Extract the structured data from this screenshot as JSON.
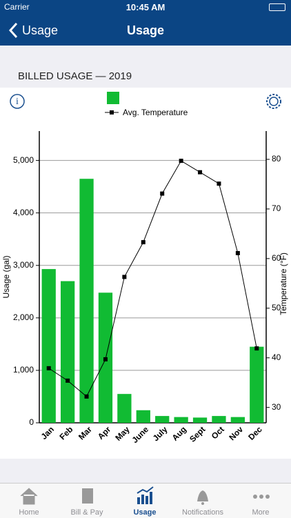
{
  "status": {
    "carrier": "Carrier",
    "time": "10:45 AM"
  },
  "nav": {
    "back": "Usage",
    "title": "Usage"
  },
  "section_title": "BILLED USAGE — 2019",
  "chart_data": {
    "type": "bar",
    "ylabel": "Usage (gal)",
    "y2label": "Temperature (°F)",
    "categories": [
      "Jan",
      "Feb",
      "Mar",
      "Apr",
      "May",
      "June",
      "July",
      "Aug",
      "Sept",
      "Oct",
      "Nov",
      "Dec"
    ],
    "series": [
      {
        "color": "#11bb33",
        "values": [
          2930,
          2700,
          4650,
          2480,
          550,
          240,
          130,
          110,
          100,
          130,
          110,
          1450
        ]
      },
      {
        "name": "Avg. Temperature",
        "type": "line",
        "axis": "y2",
        "color": "#000000",
        "values": [
          37.9,
          35.4,
          32.2,
          39.7,
          56.3,
          63.3,
          73.1,
          79.7,
          77.4,
          75.1,
          61.1,
          41.9
        ]
      }
    ],
    "ylim": [
      0,
      5560
    ],
    "yticks": [
      0,
      {
        "value": 1000,
        "label": "1,000"
      },
      {
        "value": 2000,
        "label": "2,000"
      },
      {
        "value": 3000,
        "label": "3,000"
      },
      {
        "value": 4000,
        "label": "4,000"
      },
      {
        "value": 5000,
        "label": "5,000"
      }
    ],
    "y2lim": [
      26.9,
      85.7
    ],
    "y2ticks": [
      30,
      40,
      50,
      60,
      70,
      80
    ],
    "grid": true,
    "legend": "top"
  },
  "tabs": [
    "Home",
    "Bill & Pay",
    "Usage",
    "Notifications",
    "More"
  ]
}
